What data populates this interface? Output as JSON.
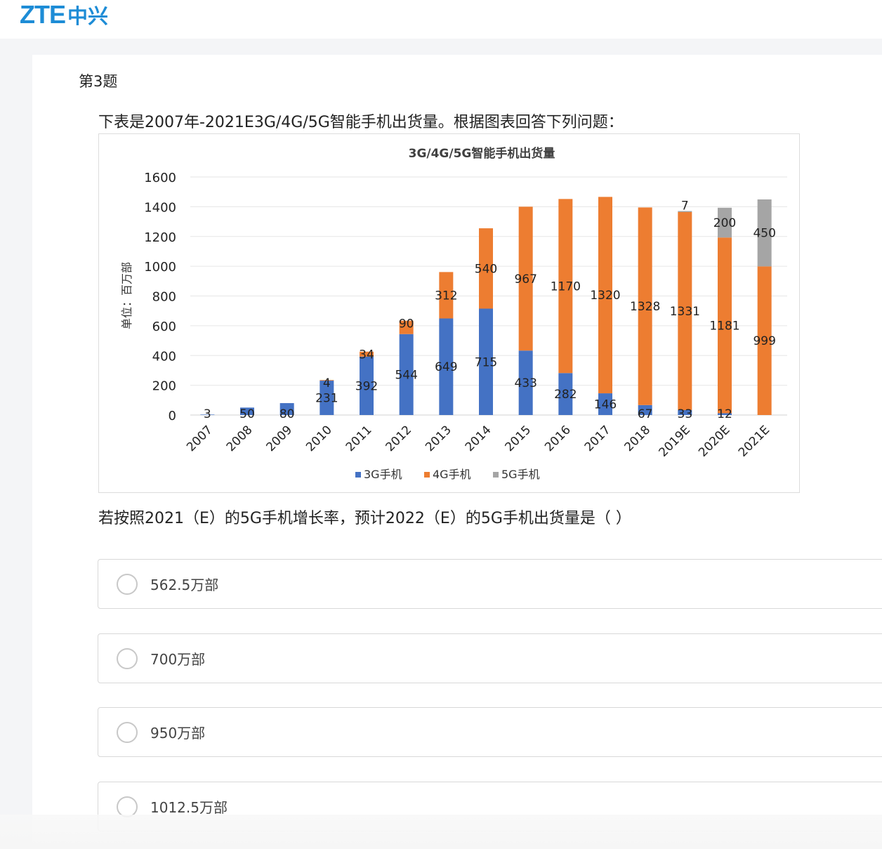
{
  "logo": {
    "latin": "ZTE",
    "cjk": "中兴"
  },
  "question_number": "第3题",
  "stem": "下表是2007年-2021E3G/4G/5G智能手机出货量。根据图表回答下列问题：",
  "question": "若按照2021（E）的5G手机增长率，预计2022（E）的5G手机出货量是（ ）",
  "options": [
    {
      "label": "562.5万部"
    },
    {
      "label": "700万部"
    },
    {
      "label": "950万部"
    },
    {
      "label": "1012.5万部"
    }
  ],
  "chart_data": {
    "type": "bar",
    "stacked": true,
    "title": "3G/4G/5G智能手机出货量",
    "ylabel": "单位：百万部",
    "xlabel": "",
    "ylim": [
      0,
      1600
    ],
    "yticks": [
      0,
      200,
      400,
      600,
      800,
      1000,
      1200,
      1400,
      1600
    ],
    "grid": true,
    "legend_position": "bottom",
    "categories": [
      "2007",
      "2008",
      "2009",
      "2010",
      "2011",
      "2012",
      "2013",
      "2014",
      "2015",
      "2016",
      "2017",
      "2018",
      "2019E",
      "2020E",
      "2021E"
    ],
    "series": [
      {
        "name": "3G手机",
        "color": "#4472c4",
        "values": [
          3,
          50,
          80,
          231,
          392,
          544,
          649,
          715,
          433,
          282,
          146,
          67,
          33,
          12,
          0
        ],
        "labels": [
          "3",
          "50",
          "80",
          "231",
          "392",
          "544",
          "649",
          "715",
          "433",
          "282",
          "146",
          "67",
          "33",
          "12",
          ""
        ]
      },
      {
        "name": "4G手机",
        "color": "#ed7d31",
        "values": [
          0,
          0,
          0,
          4,
          34,
          90,
          312,
          540,
          967,
          1170,
          1320,
          1328,
          1331,
          1181,
          999
        ],
        "labels": [
          "",
          "",
          "",
          "4",
          "34",
          "90",
          "312",
          "540",
          "967",
          "1170",
          "1320",
          "1328",
          "1331",
          "1181",
          "999"
        ]
      },
      {
        "name": "5G手机",
        "color": "#a5a5a5",
        "values": [
          0,
          0,
          0,
          0,
          0,
          0,
          0,
          0,
          0,
          0,
          0,
          0,
          7,
          200,
          450
        ],
        "labels": [
          "",
          "",
          "",
          "",
          "",
          "",
          "",
          "",
          "",
          "",
          "",
          "",
          "7",
          "200",
          "450"
        ]
      }
    ]
  }
}
